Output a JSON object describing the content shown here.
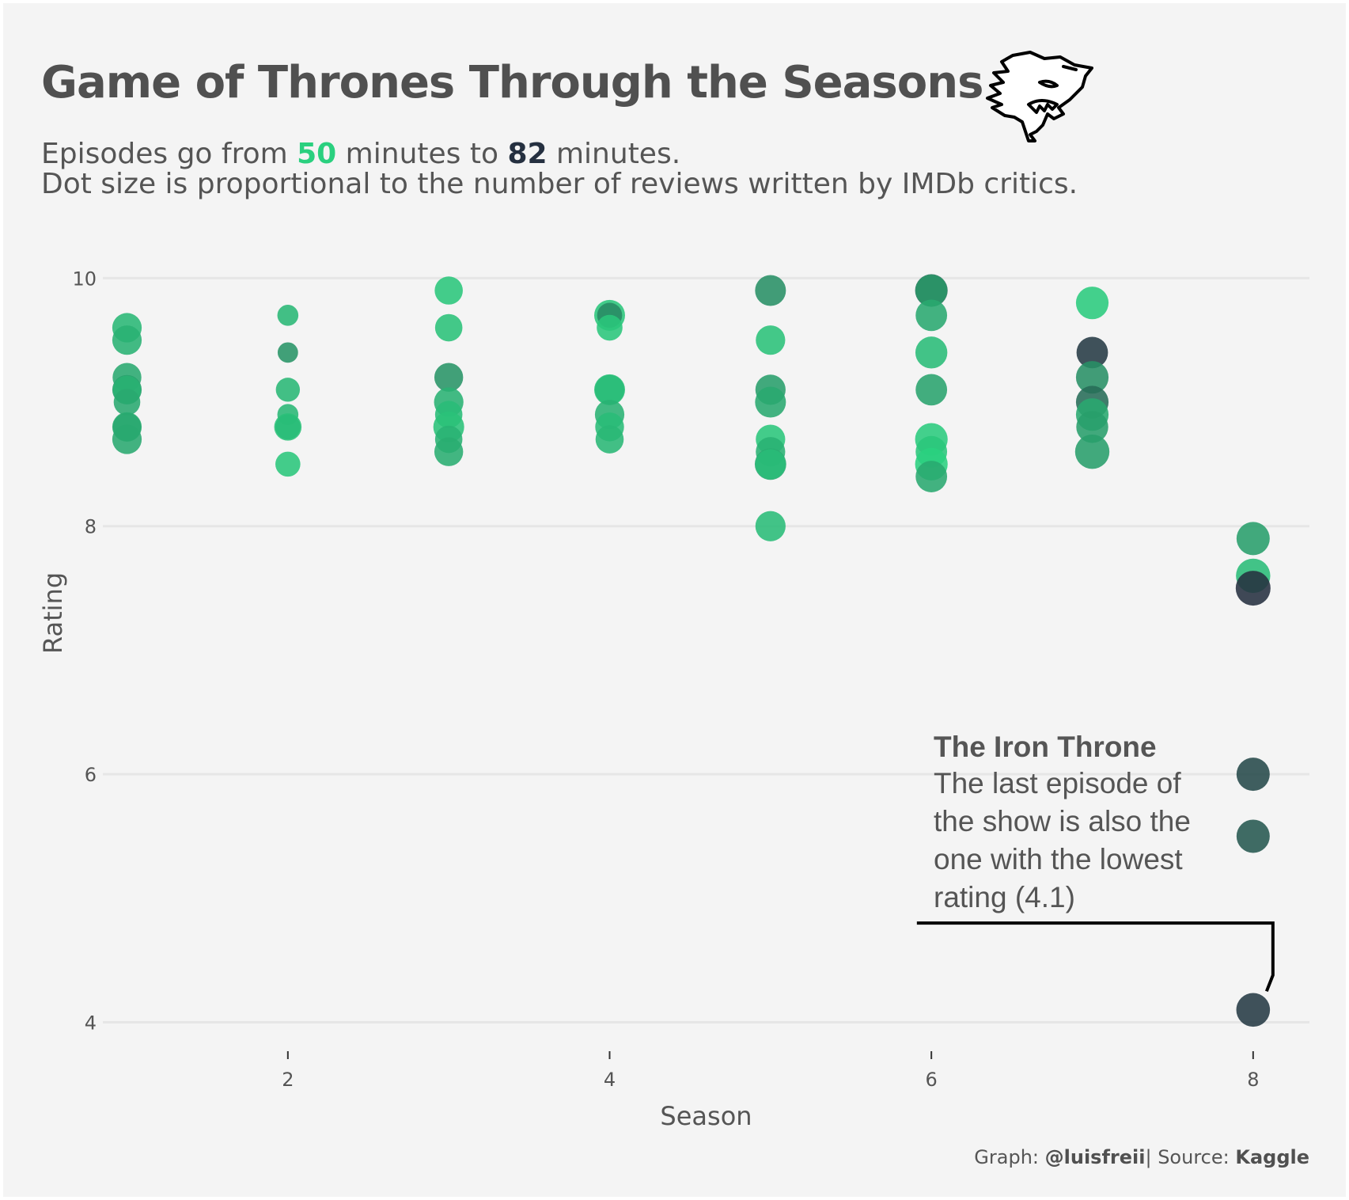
{
  "title": "Game of Thrones Through the Seasons",
  "subtitle": {
    "line1_prefix": "Episodes go from ",
    "min_minutes": "50",
    "line1_middle": " minutes to ",
    "max_minutes": "82",
    "line1_suffix": " minutes.",
    "line2": "Dot size is proportional to the number of reviews written by IMDb critics."
  },
  "annotation": {
    "title": "The Iron Throne",
    "body": "The last episode of the show is also the one with the lowest rating (4.1)"
  },
  "caption": {
    "graph_label": "Graph: ",
    "author": "@luisfreii",
    "source_label": "| Source: ",
    "source": "Kaggle"
  },
  "icon": "wolf-head-icon",
  "colors": {
    "short_episode": "#2ad07f",
    "long_episode": "#253040",
    "text": "#555555",
    "background": "#f4f4f4",
    "grid": "#e6e6e6"
  },
  "chart_data": {
    "type": "scatter",
    "xlabel": "Season",
    "ylabel": "Rating",
    "xlim": [
      0.85,
      8.35
    ],
    "ylim": [
      3.85,
      10.2
    ],
    "xticks": [
      2,
      4,
      6,
      8
    ],
    "yticks": [
      4,
      6,
      8,
      10
    ],
    "grid": "horizontal",
    "size_encoding": "number of reviews written by IMDb critics",
    "color_encoding": "episode duration in minutes (50 = green, 82 = dark)",
    "points": [
      {
        "season": 1,
        "rating": 9.6,
        "reviews": 30,
        "minutes": 55
      },
      {
        "season": 1,
        "rating": 9.5,
        "reviews": 30,
        "minutes": 56
      },
      {
        "season": 1,
        "rating": 9.2,
        "reviews": 28,
        "minutes": 58
      },
      {
        "season": 1,
        "rating": 9.1,
        "reviews": 30,
        "minutes": 60
      },
      {
        "season": 1,
        "rating": 9.1,
        "reviews": 26,
        "minutes": 56
      },
      {
        "season": 1,
        "rating": 9.0,
        "reviews": 22,
        "minutes": 58
      },
      {
        "season": 1,
        "rating": 8.8,
        "reviews": 30,
        "minutes": 57
      },
      {
        "season": 1,
        "rating": 8.8,
        "reviews": 26,
        "minutes": 58
      },
      {
        "season": 1,
        "rating": 8.7,
        "reviews": 30,
        "minutes": 58
      },
      {
        "season": 2,
        "rating": 9.7,
        "reviews": 10,
        "minutes": 55
      },
      {
        "season": 2,
        "rating": 9.4,
        "reviews": 9,
        "minutes": 62
      },
      {
        "season": 2,
        "rating": 9.1,
        "reviews": 16,
        "minutes": 55
      },
      {
        "season": 2,
        "rating": 8.9,
        "reviews": 10,
        "minutes": 55
      },
      {
        "season": 2,
        "rating": 8.8,
        "reviews": 24,
        "minutes": 53
      },
      {
        "season": 2,
        "rating": 8.8,
        "reviews": 18,
        "minutes": 54
      },
      {
        "season": 2,
        "rating": 8.5,
        "reviews": 18,
        "minutes": 52
      },
      {
        "season": 3,
        "rating": 9.9,
        "reviews": 26,
        "minutes": 52
      },
      {
        "season": 3,
        "rating": 9.6,
        "reviews": 24,
        "minutes": 53
      },
      {
        "season": 3,
        "rating": 9.2,
        "reviews": 28,
        "minutes": 62
      },
      {
        "season": 3,
        "rating": 9.0,
        "reviews": 30,
        "minutes": 56
      },
      {
        "season": 3,
        "rating": 8.9,
        "reviews": 24,
        "minutes": 54
      },
      {
        "season": 3,
        "rating": 8.8,
        "reviews": 34,
        "minutes": 53
      },
      {
        "season": 3,
        "rating": 8.7,
        "reviews": 24,
        "minutes": 56
      },
      {
        "season": 3,
        "rating": 8.6,
        "reviews": 28,
        "minutes": 57
      },
      {
        "season": 4,
        "rating": 9.7,
        "reviews": 34,
        "minutes": 52
      },
      {
        "season": 4,
        "rating": 9.7,
        "reviews": 18,
        "minutes": 64
      },
      {
        "season": 4,
        "rating": 9.6,
        "reviews": 20,
        "minutes": 52
      },
      {
        "season": 4,
        "rating": 9.1,
        "reviews": 34,
        "minutes": 53
      },
      {
        "season": 4,
        "rating": 9.1,
        "reviews": 30,
        "minutes": 54
      },
      {
        "season": 4,
        "rating": 8.9,
        "reviews": 30,
        "minutes": 56
      },
      {
        "season": 4,
        "rating": 8.8,
        "reviews": 28,
        "minutes": 54
      },
      {
        "season": 4,
        "rating": 8.7,
        "reviews": 26,
        "minutes": 55
      },
      {
        "season": 5,
        "rating": 9.9,
        "reviews": 34,
        "minutes": 63
      },
      {
        "season": 5,
        "rating": 9.5,
        "reviews": 30,
        "minutes": 53
      },
      {
        "season": 5,
        "rating": 9.1,
        "reviews": 32,
        "minutes": 60
      },
      {
        "season": 5,
        "rating": 9.0,
        "reviews": 34,
        "minutes": 58
      },
      {
        "season": 5,
        "rating": 8.7,
        "reviews": 30,
        "minutes": 52
      },
      {
        "season": 5,
        "rating": 8.6,
        "reviews": 30,
        "minutes": 56
      },
      {
        "season": 5,
        "rating": 8.5,
        "reviews": 36,
        "minutes": 58
      },
      {
        "season": 5,
        "rating": 8.5,
        "reviews": 32,
        "minutes": 54
      },
      {
        "season": 5,
        "rating": 8.0,
        "reviews": 32,
        "minutes": 54
      },
      {
        "season": 6,
        "rating": 9.9,
        "reviews": 40,
        "minutes": 68
      },
      {
        "season": 6,
        "rating": 9.9,
        "reviews": 36,
        "minutes": 62
      },
      {
        "season": 6,
        "rating": 9.7,
        "reviews": 36,
        "minutes": 58
      },
      {
        "season": 6,
        "rating": 9.4,
        "reviews": 38,
        "minutes": 54
      },
      {
        "season": 6,
        "rating": 9.1,
        "reviews": 36,
        "minutes": 59
      },
      {
        "season": 6,
        "rating": 8.7,
        "reviews": 40,
        "minutes": 51
      },
      {
        "season": 6,
        "rating": 8.6,
        "reviews": 36,
        "minutes": 52
      },
      {
        "season": 6,
        "rating": 8.5,
        "reviews": 40,
        "minutes": 50
      },
      {
        "season": 6,
        "rating": 8.4,
        "reviews": 36,
        "minutes": 58
      },
      {
        "season": 7,
        "rating": 9.8,
        "reviews": 40,
        "minutes": 51
      },
      {
        "season": 7,
        "rating": 9.4,
        "reviews": 36,
        "minutes": 80
      },
      {
        "season": 7,
        "rating": 9.2,
        "reviews": 40,
        "minutes": 63
      },
      {
        "season": 7,
        "rating": 9.0,
        "reviews": 40,
        "minutes": 70
      },
      {
        "season": 7,
        "rating": 8.9,
        "reviews": 40,
        "minutes": 58
      },
      {
        "season": 7,
        "rating": 8.8,
        "reviews": 38,
        "minutes": 60
      },
      {
        "season": 7,
        "rating": 8.6,
        "reviews": 46,
        "minutes": 60
      },
      {
        "season": 8,
        "rating": 7.9,
        "reviews": 42,
        "minutes": 60
      },
      {
        "season": 8,
        "rating": 7.6,
        "reviews": 46,
        "minutes": 54
      },
      {
        "season": 8,
        "rating": 7.5,
        "reviews": 48,
        "minutes": 82
      },
      {
        "season": 8,
        "rating": 6.0,
        "reviews": 42,
        "minutes": 77
      },
      {
        "season": 8,
        "rating": 5.5,
        "reviews": 42,
        "minutes": 74
      },
      {
        "season": 8,
        "rating": 4.1,
        "reviews": 44,
        "minutes": 80
      }
    ]
  }
}
